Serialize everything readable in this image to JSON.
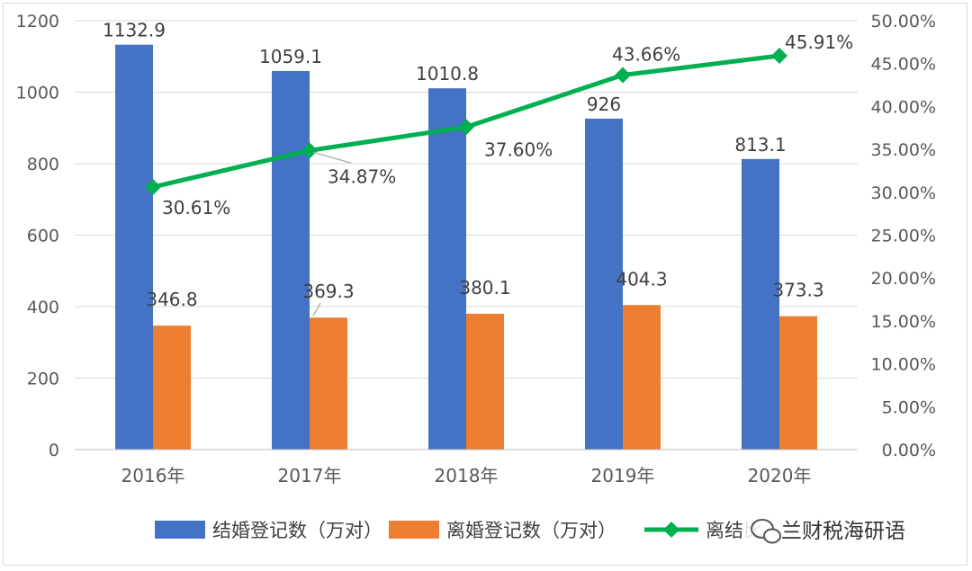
{
  "colors": {
    "marriages": "#4472C4",
    "divorces": "#ED7D31",
    "ratio": "#00B050",
    "grid": "#d9d9d9",
    "axis_text": "#595959"
  },
  "chart_data": {
    "type": "bar",
    "combo": "bar + line (secondary axis)",
    "categories": [
      "2016年",
      "2017年",
      "2018年",
      "2019年",
      "2020年"
    ],
    "series": [
      {
        "name": "结婚登记数（万对）",
        "kind": "bar",
        "axis": "left",
        "values": [
          1132.9,
          1059.1,
          1010.8,
          926,
          813.1
        ],
        "labels": [
          "1132.9",
          "1059.1",
          "1010.8",
          "926",
          "813.1"
        ]
      },
      {
        "name": "离婚登记数（万对）",
        "kind": "bar",
        "axis": "left",
        "values": [
          346.8,
          369.3,
          380.1,
          404.3,
          373.3
        ],
        "labels": [
          "346.8",
          "369.3",
          "380.1",
          "404.3",
          "373.3"
        ]
      },
      {
        "name": "离结比",
        "kind": "line",
        "marker": "diamond",
        "axis": "right",
        "values": [
          0.3061,
          0.3487,
          0.376,
          0.4366,
          0.4591
        ],
        "labels": [
          "30.61%",
          "34.87%",
          "37.60%",
          "43.66%",
          "45.91%"
        ]
      }
    ],
    "y_left": {
      "ylim": [
        0,
        1200
      ],
      "ticks": [
        "0",
        "200",
        "400",
        "600",
        "800",
        "1000",
        "1200"
      ]
    },
    "y_right": {
      "ylim": [
        0,
        0.5
      ],
      "ticks": [
        "0.00%",
        "5.00%",
        "10.00%",
        "15.00%",
        "20.00%",
        "25.00%",
        "30.00%",
        "35.00%",
        "40.00%",
        "45.00%",
        "50.00%"
      ]
    },
    "grid": true,
    "legend": "bottom-center"
  },
  "watermark": {
    "text": "兰财税海研语",
    "icon": "wechat-icon"
  }
}
